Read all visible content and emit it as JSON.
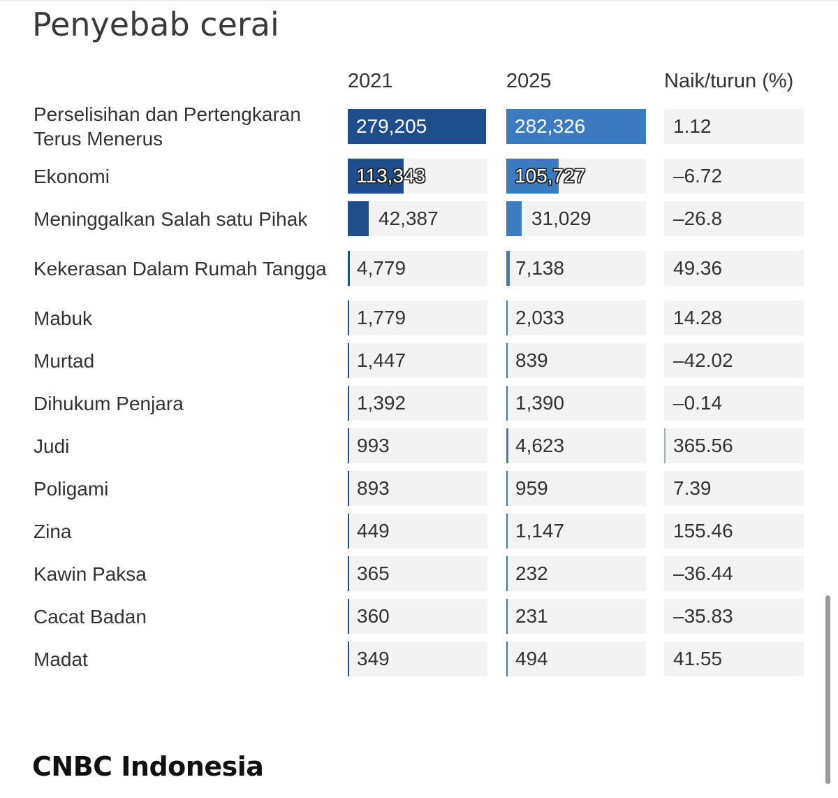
{
  "chart_data": {
    "type": "table",
    "title": "Penyebab cerai",
    "columns": [
      "2021",
      "2025",
      "Naik/turun (%)"
    ],
    "rows": [
      {
        "label": "Perselisihan dan Pertengkaran Terus Menerus",
        "v2021": 279205,
        "v2025": 282326,
        "change": 1.12,
        "t2021": "279,205",
        "t2025": "282,326",
        "tchange": "1.12"
      },
      {
        "label": "Ekonomi",
        "v2021": 113343,
        "v2025": 105727,
        "change": -6.72,
        "t2021": "113,343",
        "t2025": "105,727",
        "tchange": "–6.72"
      },
      {
        "label": "Meninggalkan Salah satu Pihak",
        "v2021": 42387,
        "v2025": 31029,
        "change": -26.8,
        "t2021": "42,387",
        "t2025": "31,029",
        "tchange": "–26.8"
      },
      {
        "label": "Kekerasan Dalam Rumah Tangga",
        "v2021": 4779,
        "v2025": 7138,
        "change": 49.36,
        "t2021": "4,779",
        "t2025": "7,138",
        "tchange": "49.36"
      },
      {
        "label": "Mabuk",
        "v2021": 1779,
        "v2025": 2033,
        "change": 14.28,
        "t2021": "1,779",
        "t2025": "2,033",
        "tchange": "14.28"
      },
      {
        "label": "Murtad",
        "v2021": 1447,
        "v2025": 839,
        "change": -42.02,
        "t2021": "1,447",
        "t2025": "839",
        "tchange": "–42.02"
      },
      {
        "label": "Dihukum Penjara",
        "v2021": 1392,
        "v2025": 1390,
        "change": -0.14,
        "t2021": "1,392",
        "t2025": "1,390",
        "tchange": "–0.14"
      },
      {
        "label": "Judi",
        "v2021": 993,
        "v2025": 4623,
        "change": 365.56,
        "t2021": "993",
        "t2025": "4,623",
        "tchange": "365.56"
      },
      {
        "label": "Poligami",
        "v2021": 893,
        "v2025": 959,
        "change": 7.39,
        "t2021": "893",
        "t2025": "959",
        "tchange": "7.39"
      },
      {
        "label": "Zina",
        "v2021": 449,
        "v2025": 1147,
        "change": 155.46,
        "t2021": "449",
        "t2025": "1,147",
        "tchange": "155.46"
      },
      {
        "label": "Kawin Paksa",
        "v2021": 365,
        "v2025": 232,
        "change": -36.44,
        "t2021": "365",
        "t2025": "232",
        "tchange": "–36.44"
      },
      {
        "label": "Cacat Badan",
        "v2021": 360,
        "v2025": 231,
        "change": -35.83,
        "t2021": "360",
        "t2025": "231",
        "tchange": "–35.83"
      },
      {
        "label": "Madat",
        "v2021": 349,
        "v2025": 494,
        "change": 41.55,
        "t2021": "349",
        "t2025": "494",
        "tchange": "41.55"
      }
    ],
    "colors": {
      "bar2021": "#1f4e8c",
      "bar2025": "#3d7bc0",
      "barChange": "#9ab0c8",
      "cellBackground": "#f3f3f3"
    }
  },
  "source": "CNBC Indonesia"
}
